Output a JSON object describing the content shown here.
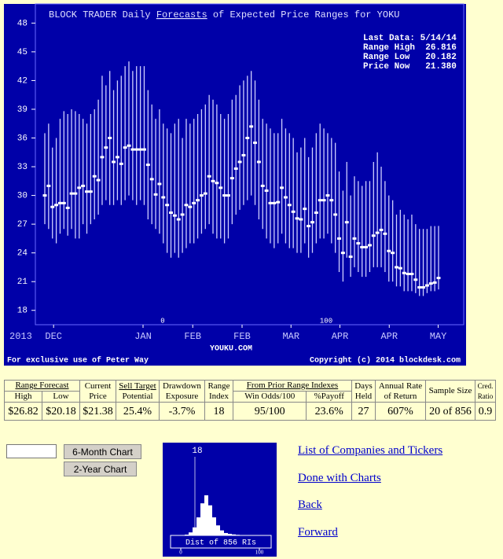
{
  "chart_data": [
    {
      "type": "range",
      "title": "BLOCK TRADER Daily",
      "title_link": "Forecasts",
      "title_rest": "of Expected Price Ranges for  YOKU",
      "year_label": "2013",
      "ticker_label": "YOUKU.COM",
      "footer_left": "For exclusive use of Peter Way",
      "footer_right": "Copyright (c) 2014 blockdesk.com",
      "annotations": [
        "0",
        "100"
      ],
      "info_box": [
        "Last Data: 5/14/14",
        "Range High  26.816",
        "Range Low   20.182",
        "Price Now   21.380"
      ],
      "categories": [
        null,
        null,
        null,
        null,
        null,
        null,
        null,
        null,
        null,
        null,
        null,
        null,
        null,
        null,
        null,
        null,
        null,
        null,
        null,
        null,
        null,
        null,
        null,
        null,
        null,
        null,
        null,
        null,
        null,
        null,
        null,
        null,
        null,
        null,
        null,
        null,
        null,
        null,
        null,
        null,
        null,
        null,
        null,
        null,
        null,
        null,
        null,
        null,
        null,
        null,
        null,
        null,
        null,
        null,
        null,
        null,
        null,
        null,
        null,
        null,
        null,
        null,
        null,
        null,
        null,
        null,
        null,
        null,
        null,
        null,
        null,
        null,
        null,
        null,
        null,
        null,
        null,
        null,
        null,
        null,
        null,
        null,
        null,
        null,
        null,
        null,
        null,
        null,
        null,
        null,
        null,
        null,
        null,
        null,
        null,
        null,
        null,
        null,
        null,
        null,
        null,
        null,
        null,
        null
      ],
      "xticks": [
        {
          "value": 2.3,
          "label": "DEC"
        },
        {
          "value": 25.7,
          "label": "JAN"
        },
        {
          "value": 38.7,
          "label": "FEB"
        },
        {
          "value": 51.6,
          "label": "FEB"
        },
        {
          "value": 64.4,
          "label": "MAR"
        },
        {
          "value": 77.2,
          "label": "APR"
        },
        {
          "value": 90.1,
          "label": "APR"
        },
        {
          "value": 102.9,
          "label": "MAY"
        }
      ],
      "ylim": [
        16.5,
        50
      ],
      "yticks": [
        18,
        21,
        24,
        27,
        30,
        33,
        36,
        39,
        42,
        45,
        48
      ],
      "series": [
        {
          "name": "Price",
          "color": "#ffffff",
          "values": [
            30.0,
            31.0,
            28.8,
            29.0,
            29.2,
            29.2,
            28.7,
            30.2,
            30.2,
            30.8,
            31.0,
            30.4,
            30.4,
            32.0,
            31.6,
            34.0,
            35.0,
            36.0,
            33.5,
            34.0,
            33.3,
            35.0,
            35.2,
            34.8,
            34.8,
            34.8,
            34.8,
            33.2,
            31.7,
            30.1,
            31.2,
            29.8,
            29.0,
            28.2,
            27.9,
            27.5,
            28.0,
            29.0,
            28.8,
            29.2,
            29.5,
            30.0,
            30.2,
            32.0,
            31.5,
            31.3,
            30.8,
            30.0,
            30.0,
            31.8,
            32.8,
            33.5,
            34.2,
            36.0,
            37.2,
            35.5,
            33.5,
            31.0,
            30.5,
            29.2,
            29.2,
            29.3,
            30.8,
            29.8,
            29.0,
            28.3,
            27.6,
            27.5,
            28.6,
            26.8,
            27.2,
            28.2,
            29.5,
            29.5,
            30.0,
            29.5,
            28.0,
            25.5,
            24.0,
            27.2,
            23.6,
            25.5,
            25.0,
            24.6,
            24.6,
            24.8,
            25.8,
            26.1,
            26.4,
            26.0,
            24.2,
            24.0,
            22.5,
            22.4,
            21.9,
            21.8,
            21.8,
            21.2,
            20.4,
            20.4,
            20.6,
            20.8,
            20.9,
            21.38
          ]
        },
        {
          "name": "Range High",
          "color": "#d0d0ff",
          "values": [
            36.5,
            37.5,
            35.0,
            36.0,
            38.0,
            38.8,
            38.5,
            39.0,
            38.8,
            38.5,
            38.0,
            37.5,
            38.5,
            39.0,
            40.0,
            42.5,
            41.5,
            43.0,
            41.0,
            42.0,
            42.5,
            43.5,
            44.0,
            43.0,
            43.5,
            43.5,
            43.5,
            41.0,
            39.5,
            38.0,
            39.0,
            37.5,
            37.0,
            36.5,
            37.5,
            38.0,
            36.0,
            38.0,
            37.5,
            38.0,
            38.5,
            39.0,
            39.5,
            40.5,
            40.0,
            39.5,
            38.5,
            38.0,
            38.5,
            40.0,
            40.5,
            41.5,
            42.0,
            42.5,
            43.0,
            42.0,
            40.0,
            38.0,
            37.5,
            37.0,
            36.5,
            36.5,
            38.0,
            37.0,
            36.5,
            36.0,
            34.5,
            35.0,
            36.0,
            34.0,
            35.0,
            36.5,
            37.5,
            37.0,
            36.5,
            36.0,
            35.5,
            32.5,
            30.5,
            33.5,
            30.0,
            32.0,
            31.5,
            31.0,
            31.5,
            31.5,
            33.5,
            34.5,
            33.0,
            31.5,
            30.0,
            29.5,
            28.0,
            28.5,
            28.0,
            27.5,
            28.0,
            27.0,
            26.5,
            26.5,
            26.5,
            26.8,
            26.8,
            26.816
          ]
        },
        {
          "name": "Range Low",
          "color": "#d0d0ff",
          "values": [
            27.0,
            26.5,
            25.5,
            25.0,
            26.0,
            26.5,
            25.8,
            26.5,
            25.5,
            25.5,
            27.0,
            26.0,
            27.0,
            27.5,
            28.0,
            29.0,
            29.5,
            29.0,
            29.0,
            29.5,
            29.0,
            29.5,
            30.0,
            29.5,
            29.0,
            29.5,
            29.0,
            27.5,
            27.0,
            26.5,
            26.0,
            25.0,
            24.0,
            23.5,
            24.0,
            23.5,
            24.0,
            24.5,
            25.0,
            25.0,
            25.5,
            26.0,
            26.5,
            27.0,
            26.0,
            25.5,
            25.5,
            25.0,
            25.5,
            27.0,
            28.0,
            28.5,
            29.0,
            29.5,
            30.0,
            29.0,
            27.5,
            26.5,
            25.5,
            25.0,
            24.5,
            25.0,
            26.0,
            25.0,
            24.5,
            24.5,
            24.0,
            24.0,
            25.0,
            23.5,
            24.0,
            25.0,
            25.5,
            25.5,
            26.0,
            25.0,
            24.0,
            22.0,
            21.0,
            23.5,
            21.5,
            22.5,
            22.0,
            21.5,
            21.5,
            22.0,
            22.5,
            22.5,
            22.5,
            22.0,
            21.0,
            21.0,
            20.5,
            20.5,
            20.0,
            20.0,
            20.0,
            19.8,
            19.5,
            19.5,
            19.8,
            20.0,
            20.0,
            20.182
          ]
        }
      ]
    },
    {
      "type": "histogram",
      "title": "Dist of 856 RIs",
      "marker": 18,
      "color": "#ffffff",
      "bins": [
        0,
        5,
        10,
        15,
        20,
        25,
        30,
        35,
        40,
        45,
        50,
        55,
        60,
        65,
        70,
        75,
        80,
        85,
        90,
        95,
        100
      ],
      "values": [
        1,
        4,
        15,
        40,
        90,
        160,
        200,
        150,
        90,
        50,
        25,
        12,
        8,
        5,
        3,
        1,
        1,
        1,
        0,
        0
      ],
      "xlim": [
        0,
        100
      ],
      "xticks": [
        0,
        100
      ],
      "ylim": [
        0,
        392
      ]
    }
  ],
  "table": {
    "headers": [
      [
        "Range Forecast"
      ],
      [
        "Current",
        "Price"
      ],
      [
        "Sell Target",
        "Potential"
      ],
      [
        "Drawdown",
        "Exposure"
      ],
      [
        "Range",
        "Index"
      ],
      [
        "From Prior Range Indexes"
      ],
      [
        "Days",
        "Held"
      ],
      [
        "Annual Rate",
        "of Return"
      ],
      [
        "Sample Size"
      ],
      [
        "Cred.",
        "Ratio"
      ]
    ],
    "subheaders": [
      "High",
      "Low",
      "Win Odds/100",
      "%Payoff"
    ],
    "row": [
      "$26.82",
      "$20.18",
      "$21.38",
      "25.4%",
      "-3.7%",
      "18",
      "95/100",
      "23.6%",
      "27",
      "607%",
      "20 of 856",
      "0.9"
    ]
  },
  "controls": {
    "buttons": [
      "6-Month Chart",
      "2-Year Chart"
    ]
  },
  "links": [
    "List of Companies and Tickers",
    "Done with Charts",
    "Back",
    "Forward"
  ]
}
